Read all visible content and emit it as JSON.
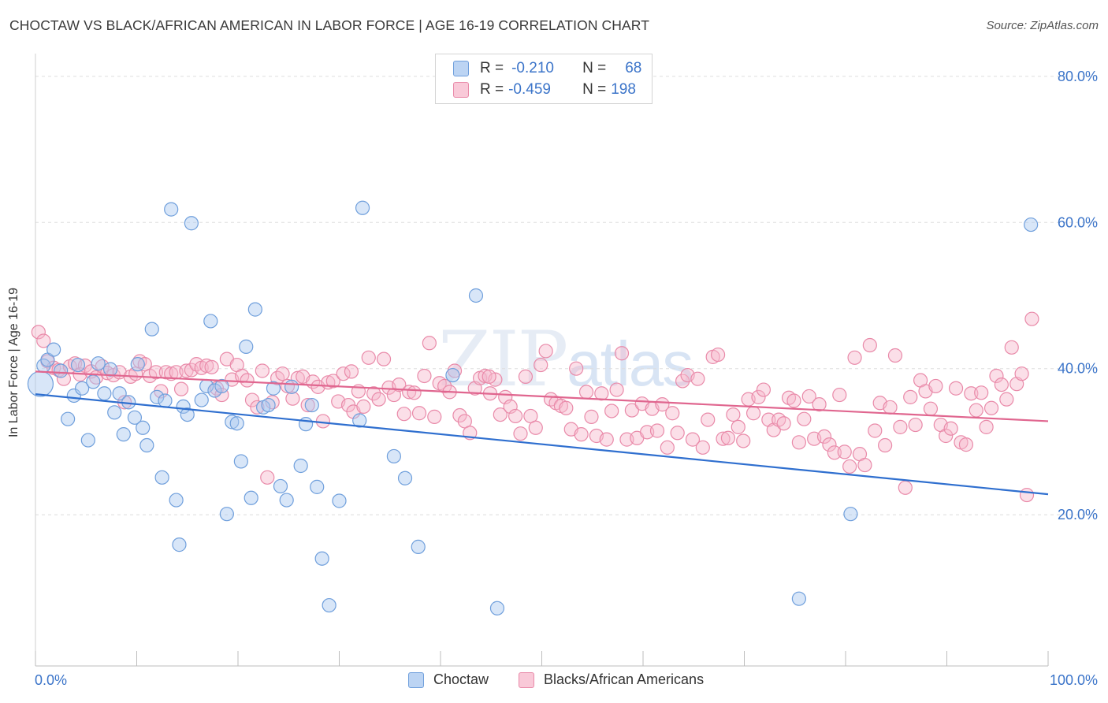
{
  "title": "CHOCTAW VS BLACK/AFRICAN AMERICAN IN LABOR FORCE | AGE 16-19 CORRELATION CHART",
  "source": "Source: ZipAtlas.com",
  "watermark": {
    "zip": "ZIP",
    "atlas": "atlas"
  },
  "legend": {
    "rows": [
      {
        "r_label": "R =",
        "r_value": "-0.210",
        "n_label": "N =",
        "n_value": "68"
      },
      {
        "r_label": "R =",
        "r_value": "-0.459",
        "n_label": "N =",
        "n_value": "198"
      }
    ]
  },
  "bottom_legend": {
    "series1": "Choctaw",
    "series2": "Blacks/African Americans"
  },
  "colors": {
    "blue_fill": "#a9c8ef",
    "blue_stroke": "#6f9fdc",
    "blue_line": "#2f6fcf",
    "pink_fill": "#f6b8cc",
    "pink_stroke": "#e98aa9",
    "pink_line": "#e0668f",
    "axis_label": "#3b74c9",
    "grid": "#dddddd"
  },
  "chart_data": {
    "type": "scatter",
    "title": "CHOCTAW VS BLACK/AFRICAN AMERICAN IN LABOR FORCE | AGE 16-19 CORRELATION CHART",
    "xlabel": "",
    "ylabel": "In Labor Force | Age 16-19",
    "xlim": [
      0,
      100
    ],
    "ylim": [
      0,
      80
    ],
    "x_tick_labels": [
      "0.0%",
      "100.0%"
    ],
    "y_tick_labels": [
      "20.0%",
      "40.0%",
      "60.0%",
      "80.0%"
    ],
    "y_ticks": [
      20,
      40,
      60,
      80
    ],
    "grid": true,
    "series": [
      {
        "name": "Choctaw",
        "trend": {
          "x": [
            0,
            100
          ],
          "y": [
            36.5,
            22.8
          ]
        },
        "points": [
          [
            0.5,
            37.9
          ],
          [
            0.8,
            40.4
          ],
          [
            1.2,
            41.2
          ],
          [
            1.8,
            42.6
          ],
          [
            2.5,
            39.7
          ],
          [
            3.2,
            33.1
          ],
          [
            3.8,
            36.3
          ],
          [
            4.2,
            40.5
          ],
          [
            4.6,
            37.3
          ],
          [
            5.2,
            30.2
          ],
          [
            5.7,
            38.2
          ],
          [
            6.2,
            40.7
          ],
          [
            6.8,
            36.6
          ],
          [
            7.4,
            39.9
          ],
          [
            7.8,
            34.0
          ],
          [
            8.3,
            36.6
          ],
          [
            8.7,
            31.0
          ],
          [
            9.2,
            35.4
          ],
          [
            9.8,
            33.3
          ],
          [
            10.1,
            40.6
          ],
          [
            10.6,
            31.9
          ],
          [
            11.0,
            29.5
          ],
          [
            11.5,
            45.4
          ],
          [
            12.0,
            36.1
          ],
          [
            12.5,
            25.1
          ],
          [
            12.8,
            35.6
          ],
          [
            13.4,
            61.8
          ],
          [
            13.9,
            22.0
          ],
          [
            14.2,
            15.9
          ],
          [
            14.6,
            34.8
          ],
          [
            15.0,
            33.7
          ],
          [
            15.4,
            59.9
          ],
          [
            16.4,
            35.7
          ],
          [
            16.9,
            37.6
          ],
          [
            17.3,
            46.5
          ],
          [
            17.7,
            37.0
          ],
          [
            18.4,
            37.6
          ],
          [
            18.9,
            20.1
          ],
          [
            19.4,
            32.7
          ],
          [
            19.9,
            32.5
          ],
          [
            20.3,
            27.3
          ],
          [
            20.8,
            43.0
          ],
          [
            21.3,
            22.3
          ],
          [
            21.7,
            48.1
          ],
          [
            22.5,
            34.7
          ],
          [
            23.0,
            35.0
          ],
          [
            23.5,
            37.3
          ],
          [
            24.2,
            23.9
          ],
          [
            24.8,
            22.0
          ],
          [
            25.3,
            37.5
          ],
          [
            26.2,
            26.7
          ],
          [
            26.7,
            32.4
          ],
          [
            27.3,
            35.0
          ],
          [
            27.8,
            23.8
          ],
          [
            28.3,
            14.0
          ],
          [
            29.0,
            7.6
          ],
          [
            30.0,
            21.9
          ],
          [
            32.0,
            32.9
          ],
          [
            32.3,
            62.0
          ],
          [
            35.4,
            28.0
          ],
          [
            36.5,
            25.0
          ],
          [
            37.8,
            15.6
          ],
          [
            43.5,
            50.0
          ],
          [
            45.6,
            7.2
          ],
          [
            75.4,
            8.5
          ],
          [
            80.5,
            20.1
          ],
          [
            98.3,
            59.7
          ],
          [
            41.2,
            39.1
          ]
        ],
        "large_points": [
          [
            0.5,
            37.9
          ]
        ]
      },
      {
        "name": "Blacks/African Americans",
        "trend": {
          "x": [
            0,
            100
          ],
          "y": [
            39.6,
            32.8
          ]
        },
        "points": [
          [
            0.3,
            45.0
          ],
          [
            0.8,
            43.8
          ],
          [
            1.2,
            41.0
          ],
          [
            1.8,
            40.1
          ],
          [
            2.3,
            39.8
          ],
          [
            2.8,
            38.6
          ],
          [
            3.4,
            40.3
          ],
          [
            3.9,
            40.7
          ],
          [
            4.4,
            39.2
          ],
          [
            4.9,
            40.4
          ],
          [
            5.5,
            39.6
          ],
          [
            6.0,
            38.8
          ],
          [
            6.6,
            40.3
          ],
          [
            7.1,
            39.4
          ],
          [
            7.7,
            39.1
          ],
          [
            8.3,
            39.5
          ],
          [
            8.8,
            35.4
          ],
          [
            9.4,
            38.9
          ],
          [
            9.9,
            39.3
          ],
          [
            10.3,
            41.0
          ],
          [
            10.8,
            40.6
          ],
          [
            11.3,
            39.0
          ],
          [
            11.9,
            39.5
          ],
          [
            12.4,
            36.9
          ],
          [
            12.9,
            39.5
          ],
          [
            13.4,
            39.3
          ],
          [
            13.9,
            39.5
          ],
          [
            14.4,
            37.2
          ],
          [
            14.9,
            39.7
          ],
          [
            15.4,
            39.8
          ],
          [
            15.9,
            40.6
          ],
          [
            16.4,
            40.1
          ],
          [
            16.9,
            40.4
          ],
          [
            17.4,
            40.2
          ],
          [
            17.9,
            37.3
          ],
          [
            18.4,
            36.4
          ],
          [
            18.9,
            41.3
          ],
          [
            19.4,
            38.5
          ],
          [
            19.9,
            40.5
          ],
          [
            20.4,
            39.0
          ],
          [
            20.9,
            38.4
          ],
          [
            21.4,
            35.7
          ],
          [
            21.9,
            34.7
          ],
          [
            22.4,
            39.7
          ],
          [
            22.9,
            25.1
          ],
          [
            23.4,
            35.4
          ],
          [
            23.9,
            38.7
          ],
          [
            24.4,
            39.3
          ],
          [
            24.9,
            37.6
          ],
          [
            25.4,
            35.9
          ],
          [
            25.9,
            38.7
          ],
          [
            26.4,
            38.9
          ],
          [
            26.9,
            35.0
          ],
          [
            27.4,
            38.2
          ],
          [
            27.9,
            37.5
          ],
          [
            28.4,
            32.8
          ],
          [
            28.9,
            38.1
          ],
          [
            29.4,
            38.3
          ],
          [
            29.9,
            35.5
          ],
          [
            30.4,
            39.3
          ],
          [
            30.9,
            35.0
          ],
          [
            31.4,
            34.1
          ],
          [
            31.9,
            36.9
          ],
          [
            32.4,
            34.8
          ],
          [
            32.9,
            41.5
          ],
          [
            33.4,
            36.6
          ],
          [
            33.9,
            35.8
          ],
          [
            34.4,
            41.3
          ],
          [
            34.9,
            37.4
          ],
          [
            35.4,
            36.4
          ],
          [
            35.9,
            37.8
          ],
          [
            36.4,
            33.8
          ],
          [
            36.9,
            36.8
          ],
          [
            37.4,
            36.7
          ],
          [
            37.9,
            33.9
          ],
          [
            38.4,
            39.0
          ],
          [
            38.9,
            43.5
          ],
          [
            39.4,
            33.4
          ],
          [
            39.9,
            38.0
          ],
          [
            40.4,
            37.6
          ],
          [
            40.9,
            36.8
          ],
          [
            41.4,
            39.7
          ],
          [
            41.9,
            33.6
          ],
          [
            42.4,
            32.8
          ],
          [
            42.9,
            31.2
          ],
          [
            43.4,
            37.3
          ],
          [
            43.9,
            38.7
          ],
          [
            44.4,
            39.0
          ],
          [
            44.9,
            36.6
          ],
          [
            45.4,
            38.5
          ],
          [
            45.9,
            33.7
          ],
          [
            46.4,
            36.1
          ],
          [
            46.9,
            34.8
          ],
          [
            47.4,
            33.5
          ],
          [
            47.9,
            31.1
          ],
          [
            48.4,
            38.9
          ],
          [
            48.9,
            33.5
          ],
          [
            49.4,
            31.9
          ],
          [
            49.9,
            40.5
          ],
          [
            50.4,
            42.4
          ],
          [
            50.9,
            35.8
          ],
          [
            51.4,
            35.3
          ],
          [
            51.9,
            34.9
          ],
          [
            52.4,
            34.6
          ],
          [
            52.9,
            31.7
          ],
          [
            53.4,
            40.0
          ],
          [
            53.9,
            31.0
          ],
          [
            54.4,
            36.8
          ],
          [
            54.9,
            33.4
          ],
          [
            55.4,
            30.8
          ],
          [
            55.9,
            36.6
          ],
          [
            56.4,
            30.3
          ],
          [
            56.9,
            34.2
          ],
          [
            57.4,
            37.1
          ],
          [
            57.9,
            42.1
          ],
          [
            58.4,
            30.3
          ],
          [
            58.9,
            34.3
          ],
          [
            59.4,
            30.5
          ],
          [
            59.9,
            35.2
          ],
          [
            60.4,
            31.3
          ],
          [
            60.9,
            34.5
          ],
          [
            61.4,
            31.5
          ],
          [
            61.9,
            35.1
          ],
          [
            62.4,
            29.2
          ],
          [
            62.9,
            33.9
          ],
          [
            63.4,
            31.2
          ],
          [
            63.9,
            38.3
          ],
          [
            64.4,
            39.1
          ],
          [
            64.9,
            30.3
          ],
          [
            65.4,
            38.6
          ],
          [
            65.9,
            29.2
          ],
          [
            66.4,
            33.0
          ],
          [
            66.9,
            41.6
          ],
          [
            67.4,
            41.9
          ],
          [
            67.9,
            30.4
          ],
          [
            68.4,
            30.5
          ],
          [
            68.9,
            33.7
          ],
          [
            69.4,
            32.0
          ],
          [
            69.9,
            30.1
          ],
          [
            70.4,
            35.8
          ],
          [
            70.9,
            33.9
          ],
          [
            71.4,
            36.1
          ],
          [
            71.9,
            37.1
          ],
          [
            72.4,
            33.0
          ],
          [
            72.9,
            31.6
          ],
          [
            73.4,
            33.0
          ],
          [
            73.9,
            32.5
          ],
          [
            74.4,
            36.0
          ],
          [
            74.9,
            35.6
          ],
          [
            75.4,
            29.9
          ],
          [
            75.9,
            33.1
          ],
          [
            76.4,
            36.2
          ],
          [
            76.9,
            30.4
          ],
          [
            77.4,
            35.1
          ],
          [
            77.9,
            30.7
          ],
          [
            78.4,
            29.6
          ],
          [
            78.9,
            28.5
          ],
          [
            79.4,
            36.4
          ],
          [
            79.9,
            28.6
          ],
          [
            80.4,
            26.6
          ],
          [
            80.9,
            41.5
          ],
          [
            81.4,
            28.3
          ],
          [
            81.9,
            26.8
          ],
          [
            82.4,
            43.2
          ],
          [
            82.9,
            31.5
          ],
          [
            83.4,
            35.3
          ],
          [
            83.9,
            29.5
          ],
          [
            84.4,
            34.7
          ],
          [
            84.9,
            41.8
          ],
          [
            85.4,
            32.0
          ],
          [
            85.9,
            23.7
          ],
          [
            86.4,
            36.1
          ],
          [
            86.9,
            32.3
          ],
          [
            87.4,
            38.4
          ],
          [
            87.9,
            36.9
          ],
          [
            88.4,
            34.5
          ],
          [
            88.9,
            37.6
          ],
          [
            89.4,
            32.3
          ],
          [
            89.9,
            30.8
          ],
          [
            90.4,
            31.8
          ],
          [
            90.9,
            37.3
          ],
          [
            91.4,
            29.9
          ],
          [
            91.9,
            29.6
          ],
          [
            92.4,
            36.6
          ],
          [
            92.9,
            34.3
          ],
          [
            93.4,
            36.7
          ],
          [
            93.9,
            32.0
          ],
          [
            94.4,
            34.6
          ],
          [
            94.9,
            39.0
          ],
          [
            95.4,
            37.8
          ],
          [
            95.9,
            35.8
          ],
          [
            96.4,
            42.9
          ],
          [
            96.9,
            37.9
          ],
          [
            97.4,
            39.3
          ],
          [
            97.9,
            22.7
          ],
          [
            98.4,
            46.8
          ],
          [
            31.2,
            39.6
          ],
          [
            44.8,
            38.9
          ]
        ],
        "large_points": []
      }
    ]
  }
}
